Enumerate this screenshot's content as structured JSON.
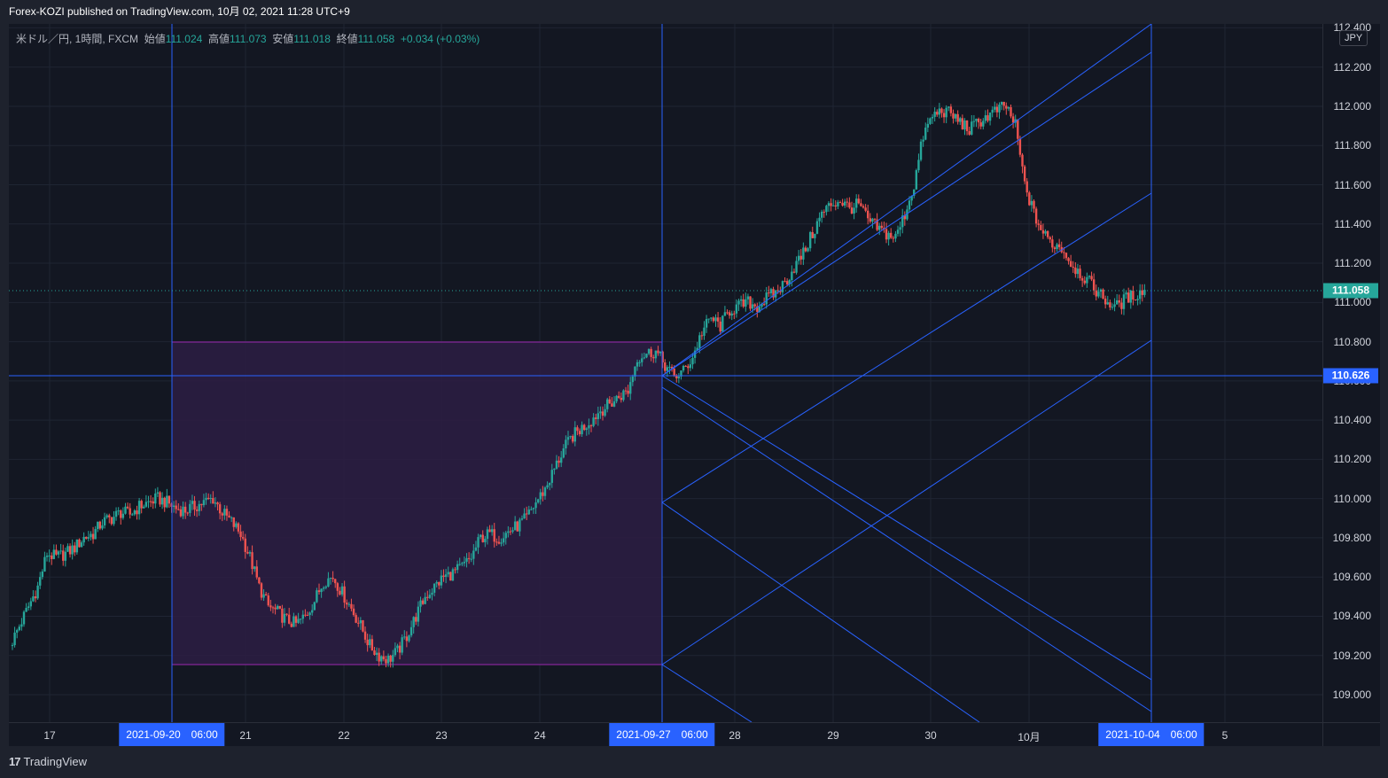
{
  "header": {
    "published_text": "Forex-KOZI published on TradingView.com, 10月 02, 2021 11:28 UTC+9"
  },
  "legend": {
    "symbol": "米ドル／円, 1時間, FXCM",
    "open_label": "始値",
    "open": "111.024",
    "high_label": "高値",
    "high": "111.073",
    "low_label": "安値",
    "low": "111.018",
    "close_label": "終値",
    "close": "111.058",
    "change": "+0.034 (+0.03%)"
  },
  "currency_button": "JPY",
  "price_axis": {
    "ticks": [
      "112.400",
      "112.200",
      "112.000",
      "111.800",
      "111.600",
      "111.400",
      "111.200",
      "111.000",
      "110.800",
      "110.600",
      "110.400",
      "110.200",
      "110.000",
      "109.800",
      "109.600",
      "109.400",
      "109.200",
      "109.000"
    ],
    "current_price": "111.058",
    "marked_price": "110.626"
  },
  "time_axis": {
    "labels": [
      "17",
      "21",
      "22",
      "23",
      "24",
      "28",
      "29",
      "30",
      "10月",
      "5"
    ],
    "badges": [
      "2021-09-20　06:00",
      "2021-09-27　06:00",
      "2021-10-04　06:00"
    ]
  },
  "footer": {
    "brand": "TradingView"
  },
  "colors": {
    "background": "#131722",
    "up": "#26a69a",
    "down": "#ef5350",
    "drawing": "#2962ff",
    "box_fill": "#2d1d43",
    "box_border": "#9c27b0"
  },
  "chart_data": {
    "type": "candlestick",
    "symbol": "USDJPY",
    "timeframe": "1h",
    "y_range": [
      108.86,
      112.42
    ],
    "close_series": [
      109.25,
      109.35,
      109.45,
      109.55,
      109.72,
      109.7,
      109.72,
      109.75,
      109.8,
      109.82,
      109.88,
      109.9,
      109.93,
      109.92,
      109.96,
      109.98,
      110.0,
      109.98,
      109.95,
      109.94,
      109.96,
      109.98,
      110.0,
      109.93,
      109.88,
      109.82,
      109.7,
      109.55,
      109.45,
      109.42,
      109.38,
      109.36,
      109.4,
      109.48,
      109.58,
      109.6,
      109.52,
      109.44,
      109.35,
      109.25,
      109.2,
      109.18,
      109.22,
      109.3,
      109.4,
      109.5,
      109.55,
      109.6,
      109.62,
      109.65,
      109.7,
      109.8,
      109.82,
      109.8,
      109.83,
      109.86,
      109.9,
      109.98,
      110.05,
      110.15,
      110.25,
      110.32,
      110.36,
      110.4,
      110.45,
      110.48,
      110.52,
      110.55,
      110.72,
      110.74,
      110.75,
      110.68,
      110.62,
      110.65,
      110.72,
      110.85,
      110.92,
      110.88,
      110.96,
      110.98,
      111.0,
      110.98,
      111.02,
      111.05,
      111.1,
      111.18,
      111.25,
      111.35,
      111.45,
      111.5,
      111.52,
      111.48,
      111.5,
      111.42,
      111.38,
      111.35,
      111.33,
      111.45,
      111.6,
      111.85,
      111.95,
      111.98,
      111.96,
      111.92,
      111.88,
      111.92,
      111.95,
      111.98,
      112.0,
      111.9,
      111.6,
      111.45,
      111.35,
      111.3,
      111.28,
      111.2,
      111.15,
      111.1,
      111.05,
      111.0,
      110.98,
      111.02,
      111.04,
      111.06
    ]
  }
}
